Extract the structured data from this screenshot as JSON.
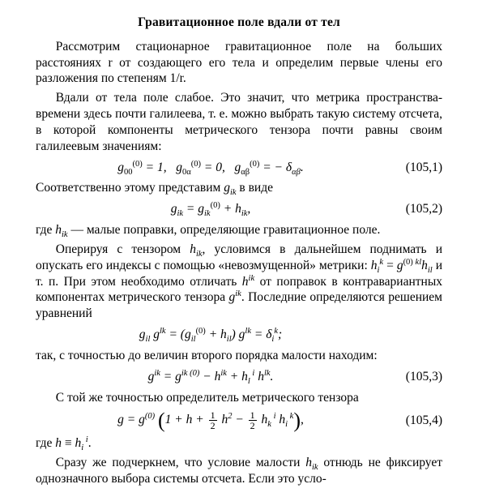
{
  "title": "Гравитационное поле вдали от тел",
  "p1": "Рассмотрим стационарное гравитационное поле на больших расстояниях r от создающего его тела и определим первые члены его разложения по степеням 1/r.",
  "p2": "Вдали от тела поле слабое. Это значит, что метрика пространства-времени здесь почти галилеева, т. е. можно выбрать такую систему отсчета, в которой компоненты метрического тензора почти равны своим галилеевым значениям:",
  "eq1": {
    "text": "g₀₀⁽⁰⁾ = 1,   g₀α⁽⁰⁾ = 0,   gαβ⁽⁰⁾ = − δαβ.",
    "tag": "(105,1)"
  },
  "p3": "Соответственно этому представим gᵢₖ в виде",
  "eq2": {
    "text": "gᵢₖ = gᵢₖ⁽⁰⁾ + hᵢₖ,",
    "tag": "(105,2)"
  },
  "p4": "где hᵢₖ — малые поправки, определяющие гравитационное поле.",
  "p5": "Оперируя с тензором hᵢₖ, условимся в дальнейшем поднимать и опускать его индексы с помощью «невозмущенной» метрики: hᵢᵏ = g⁽⁰⁾ᵏˡ hᵢₗ и т. п. При этом необходимо отличать hⁱᵏ от поправок в контравариантных компонентах метрического тензора gⁱᵏ. Последние определяются решением уравнений",
  "eq3": {
    "text": "gᵢₗ gˡᵏ = (gᵢₗ⁽⁰⁾ + hᵢₗ) gˡᵏ = δᵢᵏ;",
    "tag": ""
  },
  "p6": "так, с точностью до величин второго порядка малости находим:",
  "eq4": {
    "text": "gⁱᵏ = gⁱᵏ⁽⁰⁾ − hⁱᵏ + hₗⁱ hˡᵏ.",
    "tag": "(105,3)"
  },
  "p7": "С той же точностью определитель метрического тензора",
  "eq5": {
    "pre": "g = g⁽⁰⁾",
    "mid1": "1 + h + ",
    "mid2": " h² − ",
    "mid3": " hₖⁱ hᵢᵏ",
    "tag": "(105,4)"
  },
  "p8": "где h ≡ hᵢⁱ.",
  "p9": "Сразу же подчеркнем, что условие малости hᵢₖ отнюдь не фиксирует однозначного выбора системы отсчета. Если это усло-",
  "frac_half_num": "1",
  "frac_half_den": "2"
}
